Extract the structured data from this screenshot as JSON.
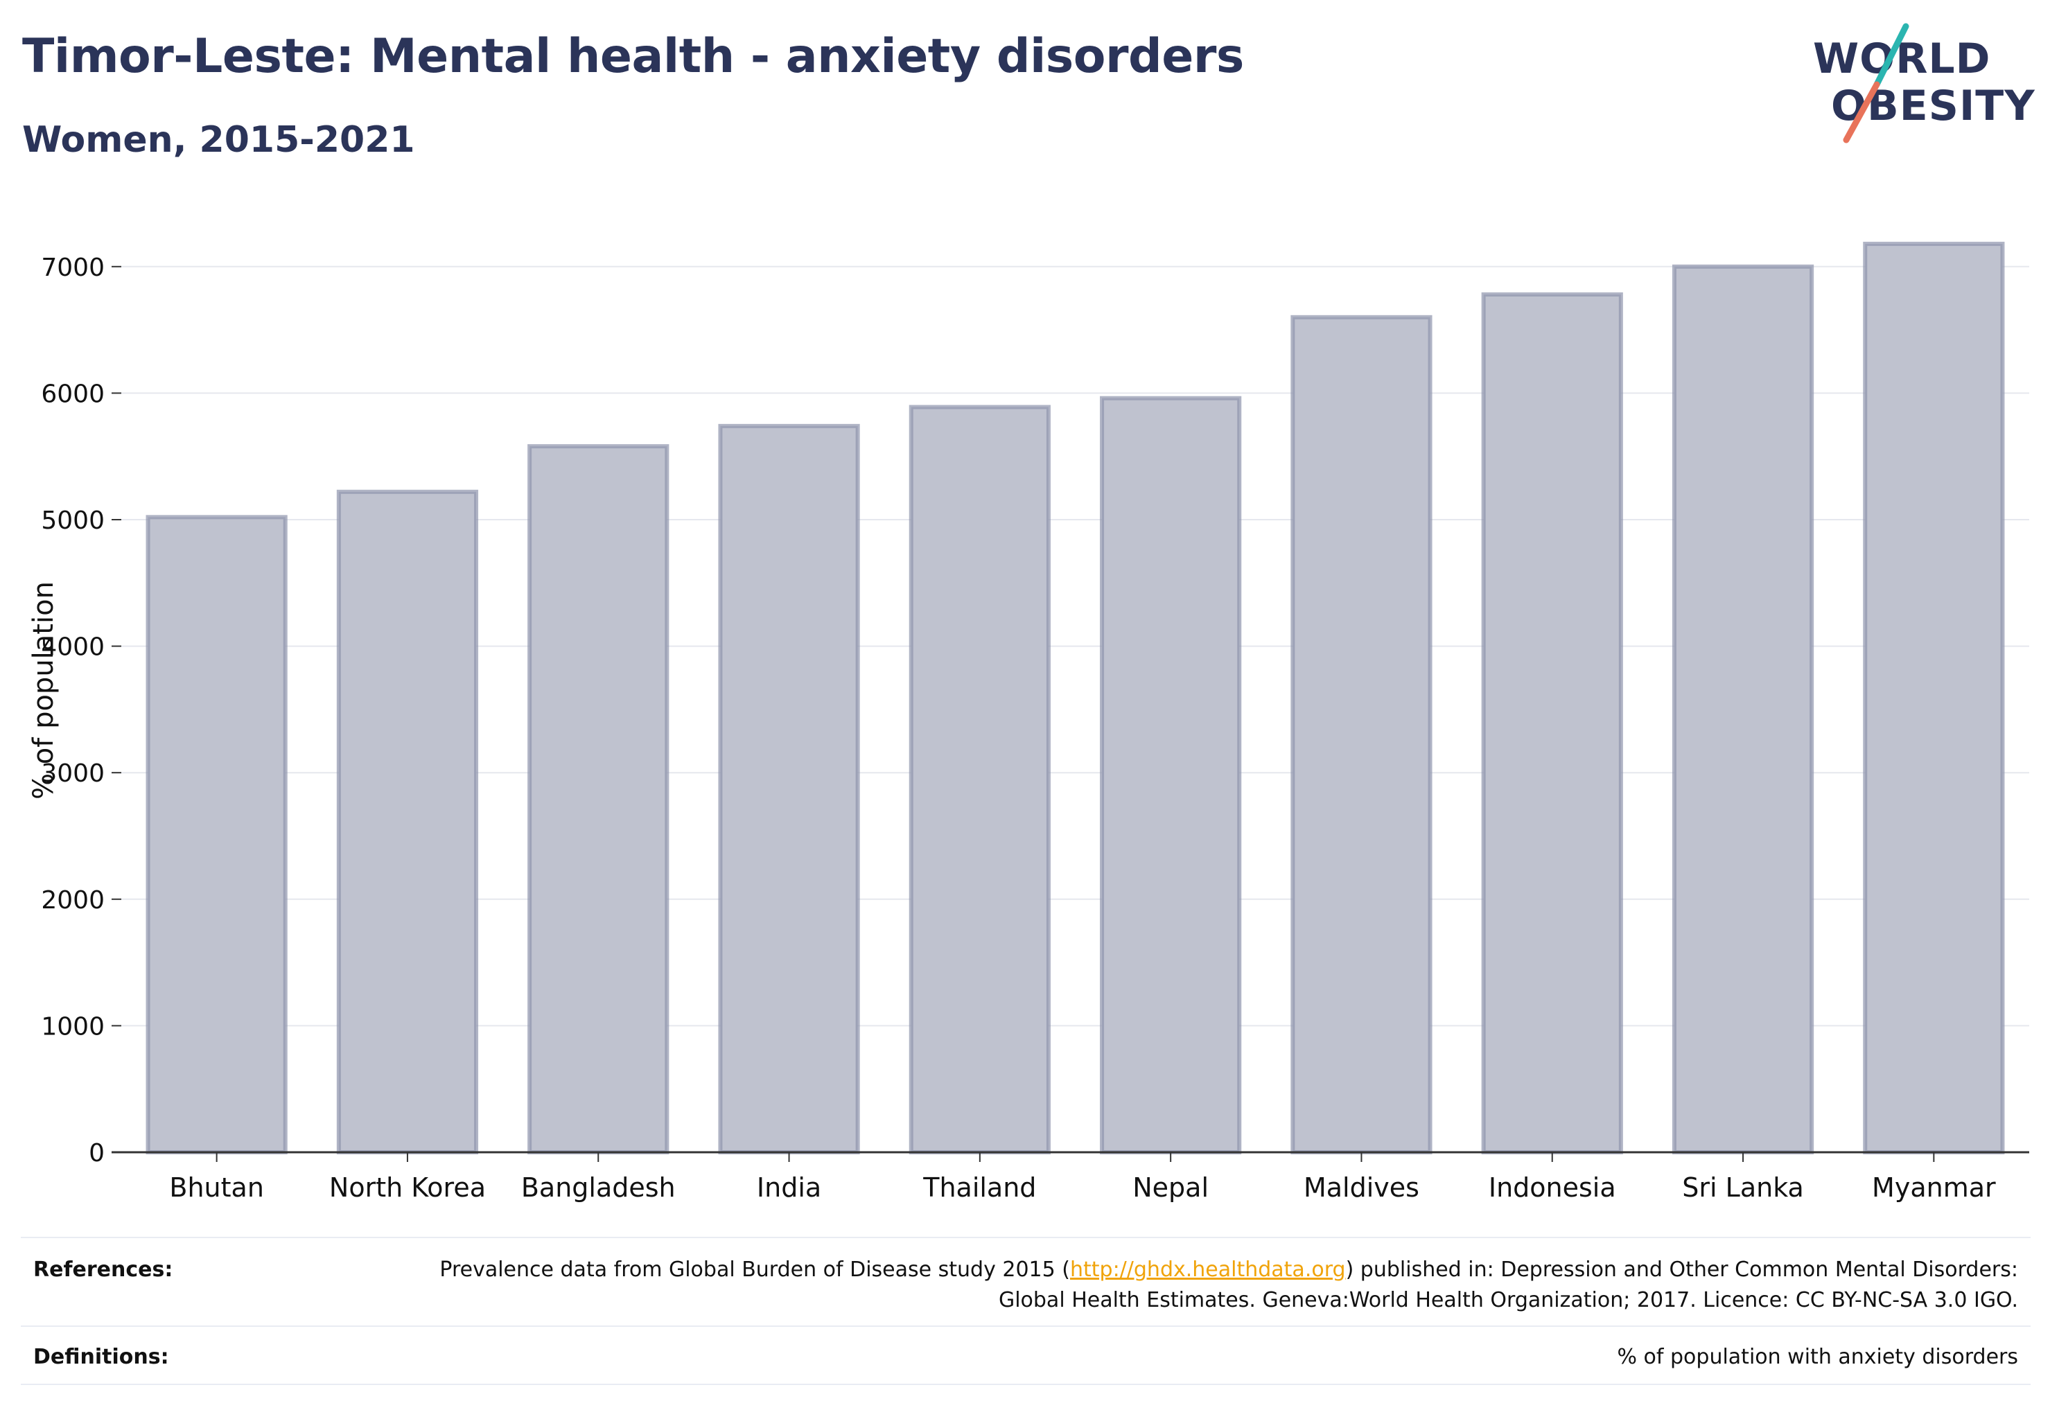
{
  "header": {
    "title": "Timor-Leste: Mental health - anxiety disorders",
    "subtitle": "Women, 2015-2021"
  },
  "logo": {
    "line1": "WORLD",
    "line2": "OBESITY",
    "accent_colors": [
      "#2bb5b0",
      "#e8735a"
    ]
  },
  "colors": {
    "bar_fill": "#bfc2cf",
    "bar_stroke": "#8e94ad",
    "text_dark": "#2b3459",
    "link": "#f0a30a"
  },
  "chart_data": {
    "type": "bar",
    "categories": [
      "Bhutan",
      "North Korea",
      "Bangladesh",
      "India",
      "Thailand",
      "Nepal",
      "Maldives",
      "Indonesia",
      "Sri Lanka",
      "Myanmar"
    ],
    "values": [
      5020,
      5220,
      5580,
      5740,
      5890,
      5960,
      6600,
      6780,
      7000,
      7180
    ],
    "ylabel": "% of population",
    "xlabel": "",
    "ylim": [
      0,
      7300
    ],
    "yticks": [
      0,
      1000,
      2000,
      3000,
      4000,
      5000,
      6000,
      7000
    ],
    "grid": true,
    "legend": "none"
  },
  "footer": {
    "references_label": "References:",
    "references_text_before": "Prevalence data from Global Burden of Disease study 2015 (",
    "references_link": "http://ghdx.healthdata.org",
    "references_text_after": ") published in: Depression and Other Common Mental Disorders: Global Health Estimates. Geneva:World Health Organization; 2017. Licence: CC BY-NC-SA 3.0 IGO.",
    "definitions_label": "Definitions:",
    "definitions_text": "% of population with anxiety disorders"
  }
}
